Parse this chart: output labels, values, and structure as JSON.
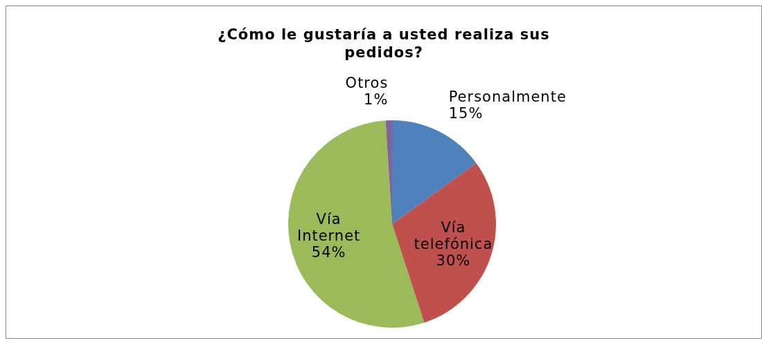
{
  "chart_data": {
    "type": "pie",
    "title": "¿Cómo le gustaría  a usted realiza sus pedidos?",
    "categories": [
      "Personalmente",
      "Vía telefónica",
      "Vía Internet",
      "Otros"
    ],
    "values": [
      15,
      30,
      54,
      1
    ],
    "value_labels": [
      "15%",
      "30%",
      "54%",
      "1%"
    ],
    "colors": [
      "#4f81bd",
      "#c0504d",
      "#9bbb59",
      "#8064a2"
    ]
  }
}
